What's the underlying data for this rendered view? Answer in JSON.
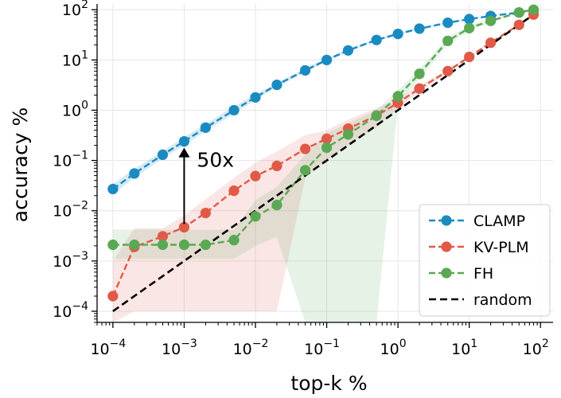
{
  "chart_data": {
    "type": "line",
    "xscale": "log",
    "yscale": "log",
    "xlabel": "top-k %",
    "ylabel": "accuracy %",
    "xlim": [
      6e-05,
      150
    ],
    "ylim": [
      6e-05,
      130
    ],
    "xticks": [
      {
        "value": 0.0001,
        "base": "10",
        "exp": "−4"
      },
      {
        "value": 0.001,
        "base": "10",
        "exp": "−3"
      },
      {
        "value": 0.01,
        "base": "10",
        "exp": "−2"
      },
      {
        "value": 0.1,
        "base": "10",
        "exp": "−1"
      },
      {
        "value": 1,
        "base": "10",
        "exp": "0"
      },
      {
        "value": 10,
        "base": "10",
        "exp": "1"
      },
      {
        "value": 100,
        "base": "10",
        "exp": "2"
      }
    ],
    "yticks": [
      {
        "value": 0.0001,
        "base": "10",
        "exp": "−4"
      },
      {
        "value": 0.001,
        "base": "10",
        "exp": "−3"
      },
      {
        "value": 0.01,
        "base": "10",
        "exp": "−2"
      },
      {
        "value": 0.1,
        "base": "10",
        "exp": "−1"
      },
      {
        "value": 1,
        "base": "10",
        "exp": "0"
      },
      {
        "value": 10,
        "base": "10",
        "exp": "1"
      },
      {
        "value": 100,
        "base": "10",
        "exp": "2"
      }
    ],
    "series": [
      {
        "name": "CLAMP",
        "color": "#1a8bc1",
        "x": [
          0.0001,
          0.0002,
          0.0005,
          0.001,
          0.002,
          0.005,
          0.01,
          0.02,
          0.05,
          0.1,
          0.2,
          0.5,
          1,
          2,
          5,
          10,
          20,
          50,
          80
        ],
        "y": [
          0.027,
          0.055,
          0.13,
          0.24,
          0.45,
          1.0,
          1.8,
          3.2,
          6.2,
          10,
          15.5,
          25,
          33,
          42,
          55,
          65,
          75,
          88,
          97
        ],
        "band_low": [
          0.021,
          0.045,
          0.11,
          0.2,
          0.38,
          0.85,
          1.6,
          2.9,
          5.7,
          9.3,
          14.5,
          23.5,
          31,
          40,
          53,
          63,
          73,
          86,
          95
        ],
        "band_high": [
          0.034,
          0.068,
          0.155,
          0.29,
          0.53,
          1.2,
          2.05,
          3.5,
          6.8,
          10.8,
          16.5,
          26.5,
          35,
          44,
          57,
          67,
          77,
          90,
          99
        ]
      },
      {
        "name": "KV-PLM",
        "color": "#e05a47",
        "x": [
          0.0001,
          0.0002,
          0.0005,
          0.001,
          0.002,
          0.005,
          0.01,
          0.02,
          0.05,
          0.1,
          0.2,
          0.5,
          1,
          2,
          5,
          10,
          20,
          50,
          80
        ],
        "y": [
          0.0002,
          0.0019,
          0.0031,
          0.0047,
          0.009,
          0.025,
          0.049,
          0.078,
          0.17,
          0.27,
          0.43,
          0.78,
          1.4,
          2.7,
          6.0,
          11.5,
          22,
          50,
          80
        ],
        "band_low": [
          5e-05,
          0.0001,
          0.0001,
          0.0001,
          0.0001,
          0.0001,
          0.0001,
          0.0001,
          0.045,
          0.1,
          0.2,
          0.45,
          1.1,
          2.3,
          5.4,
          10.8,
          21,
          48,
          78
        ],
        "band_high": [
          0.001,
          0.0045,
          0.0045,
          0.008,
          0.017,
          0.045,
          0.09,
          0.15,
          0.32,
          0.4,
          0.65,
          1.1,
          1.7,
          3.1,
          6.6,
          12.2,
          23,
          52,
          82
        ]
      },
      {
        "name": "FH",
        "color": "#5aa854",
        "x": [
          0.0001,
          0.0002,
          0.0005,
          0.001,
          0.002,
          0.005,
          0.01,
          0.02,
          0.05,
          0.1,
          0.2,
          0.5,
          1,
          2,
          5,
          10,
          20,
          50,
          80
        ],
        "y": [
          0.0021,
          0.0021,
          0.0021,
          0.0021,
          0.0021,
          0.0026,
          0.0077,
          0.013,
          0.064,
          0.18,
          0.33,
          0.78,
          1.9,
          5.3,
          24,
          43,
          60,
          88,
          100
        ],
        "band_low": [
          0.0011,
          0.0011,
          0.0011,
          0.0011,
          0.0011,
          0.0011,
          0.002,
          0.003,
          5e-05,
          5e-05,
          5e-05,
          5e-05,
          1.3,
          4.2,
          20,
          38,
          55,
          84,
          97
        ],
        "band_high": [
          0.0042,
          0.0042,
          0.0042,
          0.0042,
          0.0042,
          0.0042,
          0.016,
          0.03,
          0.13,
          0.35,
          0.55,
          1.0,
          2.5,
          6.5,
          28,
          48,
          65,
          92,
          103
        ]
      },
      {
        "name": "random",
        "color": "#000000",
        "x": [
          0.0001,
          80
        ],
        "y": [
          0.0001,
          80
        ]
      }
    ],
    "legend": {
      "position": "lower-right",
      "items": [
        "CLAMP",
        "KV-PLM",
        "FH",
        "random"
      ]
    },
    "annotation": {
      "text": "50x",
      "x": 0.001,
      "y_from": 0.0047,
      "y_to": 0.24
    },
    "grid": true
  }
}
